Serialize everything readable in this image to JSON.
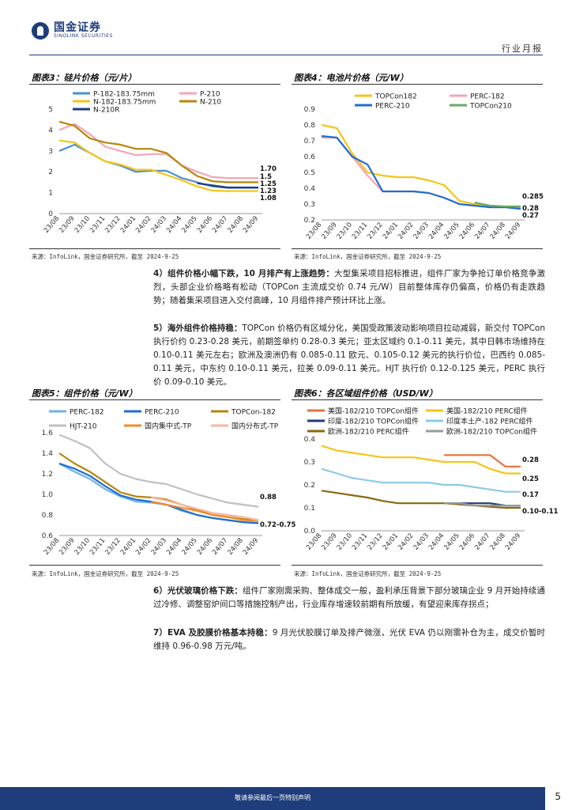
{
  "header": {
    "logo_cn": "国金证券",
    "logo_en": "SINOLINK SECURITIES",
    "report_type": "行业月报"
  },
  "figures": [
    {
      "id": 3,
      "title": "图表3：硅片价格（元/片）",
      "source": "来源：InfoLink，国金证券研究所，截至 2024-9-25"
    },
    {
      "id": 4,
      "title": "图表4：电池片价格（元/W）",
      "source": "来源：InfoLink，国金证券研究所，截至 2024-9-25"
    },
    {
      "id": 5,
      "title": "图表5：组件价格（元/W）",
      "source": "来源：InfoLink，国金证券研究所，截至 2024-9-25"
    },
    {
      "id": 6,
      "title": "图表6：各区域组件价格（USD/W）",
      "source": "来源：InfoLink，国金证券研究所，截至 2024-9-25"
    }
  ],
  "paragraphs": [
    {
      "heading": "4）组件价格小幅下跌，10 月排产有上涨趋势：",
      "body": "大型集采项目招标推进，组件厂家为争抢订单价格竞争激烈，头部企业价格略有松动（TOPCon 主流成交价 0.74 元/W）目前整体库存仍偏高，价格仍有走跌趋势；随着集采项目进入交付高峰，10 月组件排产预计环比上涨。"
    },
    {
      "heading": "5）海外组件价格持稳：",
      "body": "TOPCon 价格仍有区域分化，美国受政策波动影响项目拉动减弱，新交付 TOPCon 执行价约 0.23-0.28 美元，前期签单约 0.28-0.3 美元；亚太区域约 0.1-0.11 美元，其中日韩市场维持在 0.10-0.11 美元左右；欧洲及澳洲仍有 0.085-0.11 欧元、0.105-0.12 美元的执行价位，巴西约 0.085-0.11 美元，中东约 0.10-0.11 美元，拉美 0.09-0.11 美元。HJT 执行价 0.12-0.125 美元，PERC 执行价 0.09-0.10 美元。"
    },
    {
      "heading": "6）光伏玻璃价格下跌：",
      "body": "组件厂家刚需采购、整体成交一般，盈利承压背景下部分玻璃企业 9 月开始持续通过冷修、调整窑炉间口等措施控制产出，行业库存增速较前期有所放缓，有望迎来库存拐点；"
    },
    {
      "heading": "7）EVA 及胶膜价格基本持稳：",
      "body": "9 月光伏胶膜订单及排产微涨，光伏 EVA 仍以刚需补仓为主，成交价暂时维持 0.96-0.98 万元/吨。"
    }
  ],
  "chart_data": [
    {
      "type": "line",
      "title": "硅片价格（元/片）",
      "x": [
        "23/08",
        "23/09",
        "23/10",
        "23/11",
        "23/12",
        "24/01",
        "24/02",
        "24/03",
        "24/04",
        "24/05",
        "24/06",
        "24/07",
        "24/08",
        "24/09"
      ],
      "ylim": [
        0,
        5
      ],
      "yticks": [
        "0",
        "1",
        "2",
        "3",
        "4",
        "5"
      ],
      "series": [
        {
          "name": "P-182-183.75mm",
          "color": "#4a90d9",
          "values": [
            3.0,
            3.3,
            2.9,
            2.5,
            2.3,
            2.0,
            2.05,
            2.05,
            1.7,
            1.5,
            1.3,
            1.23,
            1.23,
            1.23
          ]
        },
        {
          "name": "P-210",
          "color": "#f4a6b5",
          "values": [
            4.0,
            4.3,
            3.8,
            3.2,
            3.0,
            2.8,
            2.85,
            2.85,
            2.3,
            2.0,
            1.75,
            1.7,
            1.7,
            1.7
          ]
        },
        {
          "name": "N-182-183.75mm",
          "color": "#f5c518",
          "values": [
            3.5,
            3.4,
            2.9,
            2.5,
            2.35,
            2.1,
            2.1,
            1.85,
            1.6,
            1.3,
            1.1,
            1.08,
            1.08,
            1.08
          ]
        },
        {
          "name": "N-210",
          "color": "#b8860b",
          "values": [
            4.4,
            4.2,
            3.6,
            3.4,
            3.3,
            3.1,
            3.1,
            2.9,
            2.3,
            1.8,
            1.55,
            1.5,
            1.5,
            1.5
          ]
        },
        {
          "name": "N-210R",
          "color": "#1f3d7a",
          "values": [
            null,
            null,
            null,
            null,
            null,
            null,
            null,
            null,
            null,
            1.45,
            1.35,
            1.25,
            1.25,
            1.25
          ]
        }
      ],
      "end_labels": [
        "1.70",
        "1.5",
        "1.25",
        "1.23",
        "1.08"
      ]
    },
    {
      "type": "line",
      "title": "电池片价格（元/W）",
      "x": [
        "23/08",
        "23/09",
        "23/10",
        "23/11",
        "23/12",
        "24/01",
        "24/02",
        "24/03",
        "24/04",
        "24/05",
        "24/06",
        "24/07",
        "24/08",
        "24/09"
      ],
      "ylim": [
        0.2,
        0.9
      ],
      "yticks": [
        "0.2",
        "0.3",
        "0.4",
        "0.5",
        "0.6",
        "0.7",
        "0.8",
        "0.9"
      ],
      "series": [
        {
          "name": "TOPCon182",
          "color": "#f5c518",
          "values": [
            0.8,
            0.78,
            0.62,
            0.5,
            0.48,
            0.47,
            0.47,
            0.45,
            0.42,
            0.32,
            0.3,
            0.29,
            0.285,
            0.285
          ]
        },
        {
          "name": "PERC-182",
          "color": "#f4a6b5",
          "values": [
            0.72,
            0.72,
            0.6,
            0.48,
            0.38,
            0.38,
            0.38,
            0.37,
            0.34,
            0.3,
            0.29,
            0.28,
            0.28,
            0.28
          ]
        },
        {
          "name": "PERC-210",
          "color": "#1f6fd0",
          "values": [
            0.73,
            0.72,
            0.6,
            0.55,
            0.38,
            0.38,
            0.38,
            0.37,
            0.34,
            0.3,
            0.29,
            0.28,
            0.28,
            0.27
          ]
        },
        {
          "name": "TOPCon210",
          "color": "#6aaa64",
          "values": [
            null,
            null,
            null,
            null,
            null,
            null,
            null,
            null,
            null,
            null,
            0.31,
            0.29,
            0.285,
            0.285
          ]
        }
      ],
      "end_labels": [
        "0.285",
        "0.28",
        "0.27"
      ]
    },
    {
      "type": "line",
      "title": "组件价格（元/W）",
      "x": [
        "23/08",
        "23/09",
        "23/10",
        "23/11",
        "23/12",
        "24/01",
        "24/02",
        "24/03",
        "24/04",
        "24/05",
        "24/06",
        "24/07",
        "24/08",
        "24/09"
      ],
      "ylim": [
        0.6,
        1.6
      ],
      "yticks": [
        "0.6",
        "0.8",
        "1.0",
        "1.2",
        "1.4",
        "1.6"
      ],
      "series": [
        {
          "name": "PERC-182",
          "color": "#6fb3e8",
          "values": [
            1.3,
            1.22,
            1.15,
            1.05,
            0.98,
            0.93,
            0.92,
            0.9,
            0.84,
            0.8,
            0.77,
            0.75,
            0.73,
            0.72
          ]
        },
        {
          "name": "PERC-210",
          "color": "#1f6fd0",
          "values": [
            1.3,
            1.25,
            1.18,
            1.08,
            0.99,
            0.95,
            0.93,
            0.9,
            0.85,
            0.8,
            0.77,
            0.75,
            0.73,
            0.72
          ]
        },
        {
          "name": "TOPCon-182",
          "color": "#b8860b",
          "values": [
            1.4,
            1.3,
            1.22,
            1.12,
            1.02,
            0.98,
            0.97,
            0.95,
            0.9,
            0.85,
            0.8,
            0.78,
            0.76,
            0.75
          ]
        },
        {
          "name": "HJT-210",
          "color": "#c0c0c0",
          "values": [
            1.58,
            1.52,
            1.45,
            1.3,
            1.2,
            1.15,
            1.12,
            1.1,
            1.05,
            1.0,
            0.96,
            0.92,
            0.9,
            0.88
          ]
        },
        {
          "name": "国内集中式-TP",
          "color": "#f08c2a",
          "values": [
            null,
            null,
            null,
            null,
            null,
            null,
            0.93,
            0.9,
            0.87,
            0.84,
            0.8,
            0.78,
            0.75,
            0.74
          ]
        },
        {
          "name": "国内分布式-TP",
          "color": "#f7b7a0",
          "values": [
            null,
            null,
            null,
            null,
            null,
            null,
            0.97,
            0.94,
            0.9,
            0.86,
            0.82,
            0.8,
            0.78,
            0.75
          ]
        }
      ],
      "end_labels": [
        "0.88",
        "0.72-0.75"
      ]
    },
    {
      "type": "line",
      "title": "各区域组件价格（USD/W）",
      "x": [
        "23/08",
        "23/09",
        "23/10",
        "23/11",
        "23/12",
        "24/01",
        "24/02",
        "24/03",
        "24/04",
        "24/05",
        "24/06",
        "24/07",
        "24/08",
        "24/09"
      ],
      "ylim": [
        0,
        0.4
      ],
      "yticks": [
        "0.0",
        "0.1",
        "0.2",
        "0.3",
        "0.4"
      ],
      "series": [
        {
          "name": "美国-182/210 TOPCon组件",
          "color": "#e8703a",
          "values": [
            null,
            null,
            null,
            null,
            null,
            null,
            null,
            null,
            0.33,
            0.33,
            0.33,
            0.33,
            0.28,
            0.28
          ]
        },
        {
          "name": "美国-182/210 PERC组件",
          "color": "#f5c518",
          "values": [
            0.37,
            0.35,
            0.34,
            0.33,
            0.32,
            0.32,
            0.32,
            0.31,
            0.3,
            0.3,
            0.3,
            0.27,
            0.25,
            0.25
          ]
        },
        {
          "name": "印度-182/210 TOPCon组件",
          "color": "#1f3d7a",
          "values": [
            null,
            null,
            null,
            null,
            null,
            null,
            null,
            null,
            0.12,
            0.12,
            0.12,
            0.12,
            0.11,
            0.11
          ]
        },
        {
          "name": "印度本土产-182 PERC组件",
          "color": "#8ecae6",
          "values": [
            0.27,
            0.25,
            0.23,
            0.22,
            0.21,
            0.21,
            0.21,
            0.21,
            0.2,
            0.2,
            0.19,
            0.18,
            0.17,
            0.17
          ]
        },
        {
          "name": "欧洲-182/210 PERC组件",
          "color": "#8b6914",
          "values": [
            0.175,
            0.165,
            0.155,
            0.145,
            0.13,
            0.12,
            0.12,
            0.12,
            0.12,
            0.115,
            0.11,
            0.105,
            0.1,
            0.1
          ]
        },
        {
          "name": "欧洲-182/210 TOPCon组件",
          "color": "#999999",
          "values": [
            null,
            null,
            null,
            null,
            null,
            null,
            null,
            null,
            0.12,
            0.12,
            0.11,
            0.11,
            0.11,
            0.11
          ]
        }
      ],
      "end_labels": [
        "0.28",
        "0.25",
        "0.17",
        "0.10-0.11"
      ]
    }
  ],
  "footer": {
    "disclaimer": "敬请参阅最后一页特别声明",
    "page": "5"
  }
}
